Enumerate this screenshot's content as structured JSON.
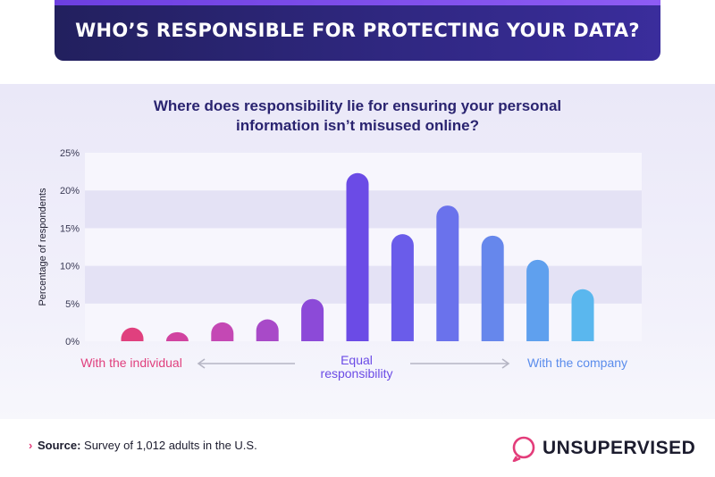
{
  "header": {
    "title": "WHO’S RESPONSIBLE FOR PROTECTING YOUR DATA?"
  },
  "chart_data": {
    "type": "bar",
    "title": "Where does responsibility lie for ensuring your personal information isn’t misused online?",
    "title_lines": [
      "Where does responsibility lie for ensuring your personal",
      "information isn’t misused online?"
    ],
    "ylabel": "Percentage of respondents",
    "ylim": [
      0,
      25
    ],
    "yticks": [
      0,
      5,
      10,
      15,
      20,
      25
    ],
    "ytick_labels": [
      "0%",
      "5%",
      "10%",
      "15%",
      "20%",
      "25%"
    ],
    "values": [
      1.8,
      1.2,
      2.5,
      2.9,
      5.6,
      22.3,
      14.2,
      18.0,
      14.0,
      10.8,
      6.9
    ],
    "colors": [
      "#e0407e",
      "#d143a0",
      "#c448b4",
      "#a84ac8",
      "#8c4ad8",
      "#6b4be6",
      "#6a5cea",
      "#6a72ec",
      "#6687ec",
      "#5fa0ee",
      "#5ab7ee"
    ],
    "grid": "horizontal bands",
    "scale_labels": {
      "left": "With the individual",
      "center_lines": [
        "Equal",
        "responsibility"
      ],
      "right": "With the company"
    }
  },
  "footer": {
    "source_label": "Source:",
    "source_text": "Survey of 1,012 adults in the U.S.",
    "brand": "UNSUPERVISED"
  }
}
